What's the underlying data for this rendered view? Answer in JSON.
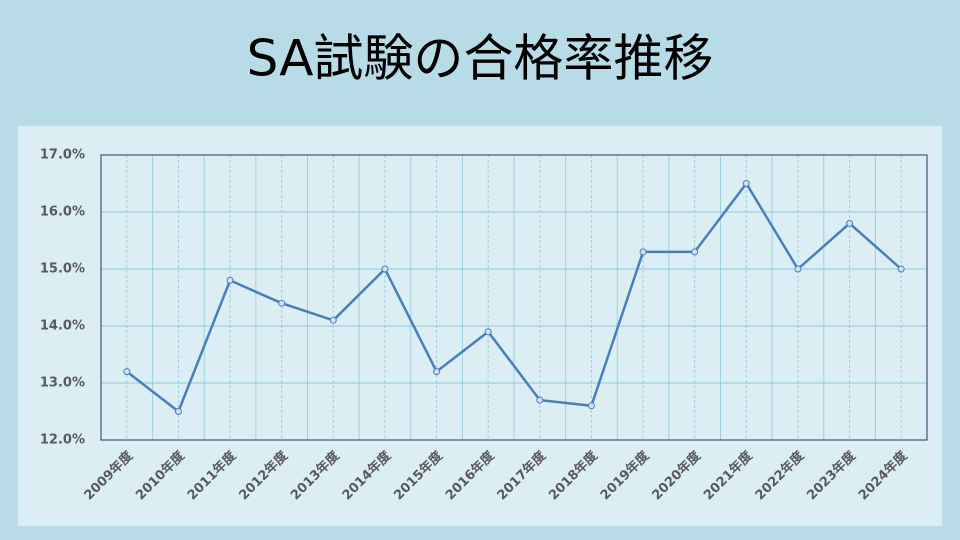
{
  "chart_data": {
    "type": "line",
    "title": "SA試験の合格率推移",
    "categories": [
      "2009年度",
      "2010年度",
      "2011年度",
      "2012年度",
      "2013年度",
      "2014年度",
      "2015年度",
      "2016年度",
      "2017年度",
      "2018年度",
      "2019年度",
      "2020年度",
      "2021年度",
      "2022年度",
      "2023年度",
      "2024年度"
    ],
    "series": [
      {
        "name": "合格率",
        "color": "#4a7ebb",
        "values": [
          13.2,
          12.5,
          14.8,
          14.4,
          14.1,
          15.0,
          13.2,
          13.9,
          12.7,
          12.6,
          15.3,
          15.3,
          16.5,
          15.0,
          15.8,
          15.0
        ]
      }
    ],
    "ylim": [
      12,
      17
    ],
    "yticks": [
      {
        "value": 12,
        "label": "12.0%"
      },
      {
        "value": 13,
        "label": "13.0%"
      },
      {
        "value": 14,
        "label": "14.0%"
      },
      {
        "value": 15,
        "label": "15.0%"
      },
      {
        "value": 16,
        "label": "16.0%"
      },
      {
        "value": 17,
        "label": "17.0%"
      }
    ],
    "grid": true
  }
}
